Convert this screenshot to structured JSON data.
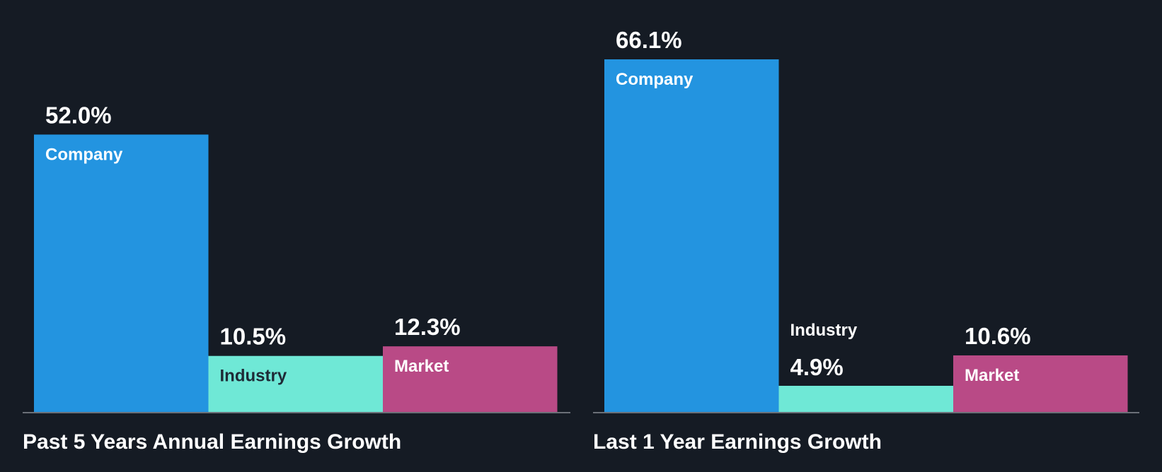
{
  "colors": {
    "background": "#151b24",
    "company": "#2394e0",
    "industry": "#6fe8d6",
    "market": "#b94a86",
    "axis": "#6b7078",
    "text_light": "#ffffff",
    "text_dark": "#1e2a36"
  },
  "chart_data": [
    {
      "type": "bar",
      "title": "Past 5 Years Annual Earnings Growth",
      "categories": [
        "Company",
        "Industry",
        "Market"
      ],
      "values": [
        52.0,
        10.5,
        12.3
      ],
      "value_labels": [
        "52.0%",
        "10.5%",
        "12.3%"
      ],
      "ylim": [
        0,
        66.1
      ],
      "xlabel": "",
      "ylabel": ""
    },
    {
      "type": "bar",
      "title": "Last 1 Year Earnings Growth",
      "categories": [
        "Company",
        "Industry",
        "Market"
      ],
      "values": [
        66.1,
        4.9,
        10.6
      ],
      "value_labels": [
        "66.1%",
        "4.9%",
        "10.6%"
      ],
      "ylim": [
        0,
        66.1
      ],
      "xlabel": "",
      "ylabel": ""
    }
  ]
}
